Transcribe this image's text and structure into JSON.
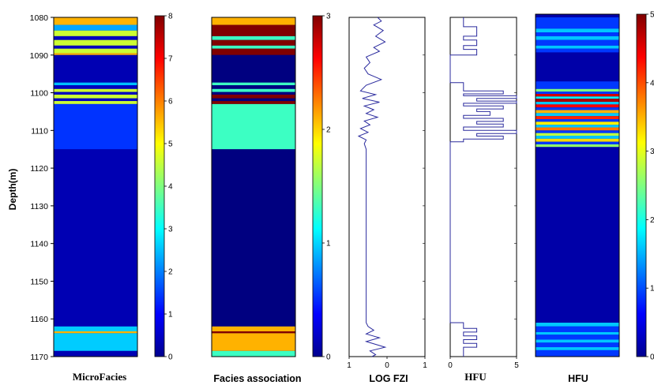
{
  "chart_data": {
    "type": "well-log",
    "ylabel": "Depth(m)",
    "depth_range": [
      1080,
      1170
    ],
    "depth_ticks": [
      1080,
      1090,
      1100,
      1110,
      1120,
      1130,
      1140,
      1150,
      1160,
      1170
    ],
    "tracks": [
      {
        "id": "microfacies",
        "label": "MicroFacies",
        "kind": "colorstrip",
        "clim": [
          0,
          8
        ],
        "colorbar_ticks": [
          0,
          1,
          2,
          3,
          4,
          5,
          6,
          7,
          8
        ],
        "background": 0.4,
        "intervals": [
          {
            "top": 1080,
            "base": 1082,
            "value": 5.6
          },
          {
            "top": 1082,
            "base": 1083.5,
            "value": 2.3
          },
          {
            "top": 1083.5,
            "base": 1085,
            "value": 4.6
          },
          {
            "top": 1085,
            "base": 1086,
            "value": 0.5
          },
          {
            "top": 1086,
            "base": 1087.5,
            "value": 4.6
          },
          {
            "top": 1087.5,
            "base": 1088.3,
            "value": 0.5
          },
          {
            "top": 1088.3,
            "base": 1089.5,
            "value": 4.6
          },
          {
            "top": 1089.5,
            "base": 1090,
            "value": 5.6
          },
          {
            "top": 1090,
            "base": 1097.3,
            "value": 0.4
          },
          {
            "top": 1097.3,
            "base": 1098,
            "value": 2.5
          },
          {
            "top": 1098,
            "base": 1099,
            "value": 0.5
          },
          {
            "top": 1099,
            "base": 1099.8,
            "value": 4.6
          },
          {
            "top": 1099.8,
            "base": 1100.5,
            "value": 0.5
          },
          {
            "top": 1100.5,
            "base": 1101.5,
            "value": 4.6
          },
          {
            "top": 1101.5,
            "base": 1102.2,
            "value": 0.5
          },
          {
            "top": 1102.2,
            "base": 1103,
            "value": 4.6
          },
          {
            "top": 1103,
            "base": 1115,
            "value": 1.4
          },
          {
            "top": 1115,
            "base": 1162,
            "value": 0.4
          },
          {
            "top": 1162,
            "base": 1163.3,
            "value": 2.6
          },
          {
            "top": 1163.3,
            "base": 1163.8,
            "value": 5.6
          },
          {
            "top": 1163.8,
            "base": 1168.5,
            "value": 2.6
          },
          {
            "top": 1168.5,
            "base": 1170,
            "value": 0.4
          }
        ]
      },
      {
        "id": "facies-association",
        "label": "Facies association",
        "kind": "colorstrip",
        "clim": [
          0,
          3
        ],
        "colorbar_ticks": [
          0,
          1,
          2,
          3
        ],
        "background": 0.0,
        "intervals": [
          {
            "top": 1080,
            "base": 1082,
            "value": 2.1
          },
          {
            "top": 1082,
            "base": 1085,
            "value": 3.0
          },
          {
            "top": 1085,
            "base": 1086,
            "value": 1.3
          },
          {
            "top": 1086,
            "base": 1087.5,
            "value": 3.0
          },
          {
            "top": 1087.5,
            "base": 1088.3,
            "value": 1.3
          },
          {
            "top": 1088.3,
            "base": 1090,
            "value": 3.0
          },
          {
            "top": 1090,
            "base": 1097.3,
            "value": 0.0
          },
          {
            "top": 1097.3,
            "base": 1098,
            "value": 1.3
          },
          {
            "top": 1098,
            "base": 1099,
            "value": 0.0
          },
          {
            "top": 1099,
            "base": 1099.8,
            "value": 1.3
          },
          {
            "top": 1099.8,
            "base": 1100.5,
            "value": 0.0
          },
          {
            "top": 1100.5,
            "base": 1101.5,
            "value": 3.0
          },
          {
            "top": 1101.5,
            "base": 1102.2,
            "value": 0.0
          },
          {
            "top": 1102.2,
            "base": 1103,
            "value": 3.0
          },
          {
            "top": 1103,
            "base": 1115,
            "value": 1.3
          },
          {
            "top": 1115,
            "base": 1162,
            "value": 0.0
          },
          {
            "top": 1162,
            "base": 1163.3,
            "value": 2.1
          },
          {
            "top": 1163.3,
            "base": 1163.8,
            "value": 3.0
          },
          {
            "top": 1163.8,
            "base": 1168.5,
            "value": 2.1
          },
          {
            "top": 1168.5,
            "base": 1170,
            "value": 1.3
          }
        ]
      },
      {
        "id": "log-fzi",
        "label": "LOG FZI",
        "kind": "curve",
        "xlim": [
          -1,
          1
        ],
        "xticks": [
          -1,
          0,
          1
        ],
        "xtick_labels": [
          "1",
          "0",
          "1"
        ],
        "color": "#2b2b9e",
        "points": [
          [
            -0.25,
            1080
          ],
          [
            -0.15,
            1081
          ],
          [
            -0.35,
            1082
          ],
          [
            -0.1,
            1083.5
          ],
          [
            -0.3,
            1085
          ],
          [
            -0.05,
            1086.5
          ],
          [
            -0.35,
            1088
          ],
          [
            -0.2,
            1089
          ],
          [
            -0.55,
            1090.5
          ],
          [
            -0.45,
            1092
          ],
          [
            -0.6,
            1093.5
          ],
          [
            -0.5,
            1095
          ],
          [
            -0.15,
            1096.5
          ],
          [
            -0.55,
            1098
          ],
          [
            -0.7,
            1099.5
          ],
          [
            -0.3,
            1100.5
          ],
          [
            -0.65,
            1101.5
          ],
          [
            -0.2,
            1102.5
          ],
          [
            -0.6,
            1103.5
          ],
          [
            -0.35,
            1104.5
          ],
          [
            -0.55,
            1105.5
          ],
          [
            -0.25,
            1106.5
          ],
          [
            -0.6,
            1107.5
          ],
          [
            -0.45,
            1108.5
          ],
          [
            -0.7,
            1109.5
          ],
          [
            -0.5,
            1110.5
          ],
          [
            -0.75,
            1111.5
          ],
          [
            -0.55,
            1112.5
          ],
          [
            -0.6,
            1113.5
          ],
          [
            -0.55,
            1115
          ],
          [
            -0.55,
            1161
          ],
          [
            -0.5,
            1162
          ],
          [
            -0.35,
            1163
          ],
          [
            -0.55,
            1164
          ],
          [
            -0.2,
            1165
          ],
          [
            -0.55,
            1166
          ],
          [
            -0.05,
            1167.5
          ],
          [
            -0.45,
            1168.5
          ],
          [
            -0.3,
            1169.5
          ],
          [
            -0.4,
            1170
          ]
        ]
      },
      {
        "id": "hfu-step",
        "label": "HFU",
        "kind": "step",
        "xlim": [
          0,
          5
        ],
        "xticks": [
          0,
          5
        ],
        "xtick_labels": [
          "0",
          "5"
        ],
        "color": "#2b2b9e",
        "steps": [
          {
            "top": 1080,
            "base": 1082.5,
            "value": 1
          },
          {
            "top": 1082.5,
            "base": 1085,
            "value": 2
          },
          {
            "top": 1085,
            "base": 1086,
            "value": 1
          },
          {
            "top": 1086,
            "base": 1087.5,
            "value": 2
          },
          {
            "top": 1087.5,
            "base": 1088.5,
            "value": 1
          },
          {
            "top": 1088.5,
            "base": 1090,
            "value": 2
          },
          {
            "top": 1090,
            "base": 1097.3,
            "value": 0
          },
          {
            "top": 1097.3,
            "base": 1098.5,
            "value": 1
          },
          {
            "top": 1098.5,
            "base": 1099.5,
            "value": 1
          },
          {
            "top": 1099.5,
            "base": 1100.3,
            "value": 4
          },
          {
            "top": 1100.3,
            "base": 1100.8,
            "value": 1
          },
          {
            "top": 1100.8,
            "base": 1101.5,
            "value": 5
          },
          {
            "top": 1101.5,
            "base": 1102.2,
            "value": 2
          },
          {
            "top": 1102.2,
            "base": 1102.8,
            "value": 5
          },
          {
            "top": 1102.8,
            "base": 1103.5,
            "value": 1
          },
          {
            "top": 1103.5,
            "base": 1104.3,
            "value": 4
          },
          {
            "top": 1104.3,
            "base": 1105,
            "value": 2
          },
          {
            "top": 1105,
            "base": 1106,
            "value": 3
          },
          {
            "top": 1106,
            "base": 1106.8,
            "value": 1
          },
          {
            "top": 1106.8,
            "base": 1107.6,
            "value": 4
          },
          {
            "top": 1107.6,
            "base": 1108.3,
            "value": 2
          },
          {
            "top": 1108.3,
            "base": 1109.1,
            "value": 4
          },
          {
            "top": 1109.1,
            "base": 1110,
            "value": 1
          },
          {
            "top": 1110,
            "base": 1110.8,
            "value": 5
          },
          {
            "top": 1110.8,
            "base": 1111.5,
            "value": 2
          },
          {
            "top": 1111.5,
            "base": 1112.3,
            "value": 4
          },
          {
            "top": 1112.3,
            "base": 1113,
            "value": 1
          },
          {
            "top": 1113,
            "base": 1161,
            "value": 0
          },
          {
            "top": 1161,
            "base": 1162.5,
            "value": 1
          },
          {
            "top": 1162.5,
            "base": 1163.5,
            "value": 2
          },
          {
            "top": 1163.5,
            "base": 1164.5,
            "value": 1
          },
          {
            "top": 1164.5,
            "base": 1165.5,
            "value": 2
          },
          {
            "top": 1165.5,
            "base": 1166.5,
            "value": 1
          },
          {
            "top": 1166.5,
            "base": 1167.5,
            "value": 2
          },
          {
            "top": 1167.5,
            "base": 1170,
            "value": 1
          }
        ]
      },
      {
        "id": "hfu-strip",
        "label": "HFU",
        "kind": "colorstrip",
        "clim": [
          0,
          5
        ],
        "colorbar_ticks": [
          0,
          1,
          2,
          3,
          4,
          5
        ],
        "background": 0.2,
        "intervals": [
          {
            "top": 1080,
            "base": 1083,
            "value": 0.9
          },
          {
            "top": 1083,
            "base": 1084,
            "value": 1.6
          },
          {
            "top": 1084,
            "base": 1085,
            "value": 0.9
          },
          {
            "top": 1085,
            "base": 1086,
            "value": 1.6
          },
          {
            "top": 1086,
            "base": 1087.5,
            "value": 0.9
          },
          {
            "top": 1087.5,
            "base": 1088.3,
            "value": 1.6
          },
          {
            "top": 1088.3,
            "base": 1089.3,
            "value": 0.9
          },
          {
            "top": 1089.3,
            "base": 1097,
            "value": 0.2
          },
          {
            "top": 1097,
            "base": 1099,
            "value": 0.9
          },
          {
            "top": 1099,
            "base": 1099.7,
            "value": 2.5
          },
          {
            "top": 1099.7,
            "base": 1100.3,
            "value": 0.9
          },
          {
            "top": 1100.3,
            "base": 1101,
            "value": 4.6
          },
          {
            "top": 1101,
            "base": 1101.6,
            "value": 1.8
          },
          {
            "top": 1101.6,
            "base": 1102.4,
            "value": 4.8
          },
          {
            "top": 1102.4,
            "base": 1103.1,
            "value": 1.6
          },
          {
            "top": 1103.1,
            "base": 1103.9,
            "value": 4.4
          },
          {
            "top": 1103.9,
            "base": 1104.6,
            "value": 0.9
          },
          {
            "top": 1104.6,
            "base": 1105.4,
            "value": 3.5
          },
          {
            "top": 1105.4,
            "base": 1106.2,
            "value": 1.6
          },
          {
            "top": 1106.2,
            "base": 1107,
            "value": 4.2
          },
          {
            "top": 1107,
            "base": 1107.7,
            "value": 0.9
          },
          {
            "top": 1107.7,
            "base": 1108.5,
            "value": 3.2
          },
          {
            "top": 1108.5,
            "base": 1109.2,
            "value": 1.6
          },
          {
            "top": 1109.2,
            "base": 1110,
            "value": 3.8
          },
          {
            "top": 1110,
            "base": 1110.7,
            "value": 0.9
          },
          {
            "top": 1110.7,
            "base": 1111.4,
            "value": 2.8
          },
          {
            "top": 1111.4,
            "base": 1112.2,
            "value": 1.6
          },
          {
            "top": 1112.2,
            "base": 1113,
            "value": 3.3
          },
          {
            "top": 1113,
            "base": 1113.7,
            "value": 0.9
          },
          {
            "top": 1113.7,
            "base": 1114.4,
            "value": 2.6
          },
          {
            "top": 1114.4,
            "base": 1161,
            "value": 0.2
          },
          {
            "top": 1161,
            "base": 1162,
            "value": 1.6
          },
          {
            "top": 1162,
            "base": 1163.5,
            "value": 0.9
          },
          {
            "top": 1163.5,
            "base": 1164.2,
            "value": 1.6
          },
          {
            "top": 1164.2,
            "base": 1165.5,
            "value": 0.9
          },
          {
            "top": 1165.5,
            "base": 1166.3,
            "value": 1.6
          },
          {
            "top": 1166.3,
            "base": 1167.5,
            "value": 0.9
          },
          {
            "top": 1167.5,
            "base": 1168.3,
            "value": 1.6
          },
          {
            "top": 1168.3,
            "base": 1170,
            "value": 0.9
          }
        ]
      }
    ]
  }
}
